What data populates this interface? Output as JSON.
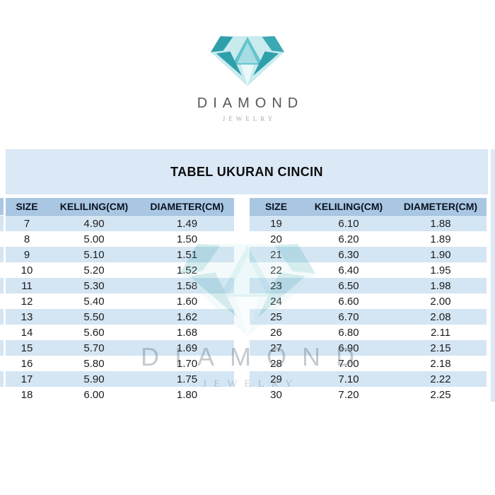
{
  "brand": {
    "name": "DIAMOND",
    "tagline": "JEWELRY"
  },
  "title": "TABEL UKURAN CINCIN",
  "columns": [
    "SIZE",
    "KELILING(CM)",
    "DIAMETER(CM)"
  ],
  "left_table": {
    "rows": [
      [
        "7",
        "4.90",
        "1.49"
      ],
      [
        "8",
        "5.00",
        "1.50"
      ],
      [
        "9",
        "5.10",
        "1.51"
      ],
      [
        "10",
        "5.20",
        "1.52"
      ],
      [
        "11",
        "5.30",
        "1.58"
      ],
      [
        "12",
        "5.40",
        "1.60"
      ],
      [
        "13",
        "5.50",
        "1.62"
      ],
      [
        "14",
        "5.60",
        "1.68"
      ],
      [
        "15",
        "5.70",
        "1.69"
      ],
      [
        "16",
        "5.80",
        "1.70"
      ],
      [
        "17",
        "5.90",
        "1.75"
      ],
      [
        "18",
        "6.00",
        "1.80"
      ]
    ]
  },
  "right_table": {
    "rows": [
      [
        "19",
        "6.10",
        "1.88"
      ],
      [
        "20",
        "6.20",
        "1.89"
      ],
      [
        "21",
        "6.30",
        "1.90"
      ],
      [
        "22",
        "6.40",
        "1.95"
      ],
      [
        "23",
        "6.50",
        "1.98"
      ],
      [
        "24",
        "6.60",
        "2.00"
      ],
      [
        "25",
        "6.70",
        "2.08"
      ],
      [
        "26",
        "6.80",
        "2.11"
      ],
      [
        "27",
        "6.90",
        "2.15"
      ],
      [
        "28",
        "7.00",
        "2.18"
      ],
      [
        "29",
        "7.10",
        "2.22"
      ],
      [
        "30",
        "7.20",
        "2.25"
      ]
    ]
  },
  "watermark": {
    "name": "DIAMOND",
    "tagline": "JEWELRY"
  },
  "colors": {
    "panel": "#dbe9f6",
    "header-bg": "#a9c7e3",
    "stripe": "#d4e5f3",
    "title-text": "#0d0d0d",
    "header-text": "#0a1220",
    "cell-text": "#1c1c1c",
    "brand-text": "#575757",
    "tagline-text": "#a9a9a9",
    "teal-dark": "#2fa0ab",
    "teal-mid": "#63c3cb",
    "teal-light": "#a5dde2",
    "teal-pale": "#c9ebee",
    "teal-strip": "#e9f8f9"
  },
  "chart_data": {
    "type": "table",
    "title": "TABEL UKURAN CINCIN",
    "columns": [
      "SIZE",
      "KELILING(CM)",
      "DIAMETER(CM)"
    ],
    "rows": [
      [
        "7",
        "4.90",
        "1.49"
      ],
      [
        "8",
        "5.00",
        "1.50"
      ],
      [
        "9",
        "5.10",
        "1.51"
      ],
      [
        "10",
        "5.20",
        "1.52"
      ],
      [
        "11",
        "5.30",
        "1.58"
      ],
      [
        "12",
        "5.40",
        "1.60"
      ],
      [
        "13",
        "5.50",
        "1.62"
      ],
      [
        "14",
        "5.60",
        "1.68"
      ],
      [
        "15",
        "5.70",
        "1.69"
      ],
      [
        "16",
        "5.80",
        "1.70"
      ],
      [
        "17",
        "5.90",
        "1.75"
      ],
      [
        "18",
        "6.00",
        "1.80"
      ],
      [
        "19",
        "6.10",
        "1.88"
      ],
      [
        "20",
        "6.20",
        "1.89"
      ],
      [
        "21",
        "6.30",
        "1.90"
      ],
      [
        "22",
        "6.40",
        "1.95"
      ],
      [
        "23",
        "6.50",
        "1.98"
      ],
      [
        "24",
        "6.60",
        "2.00"
      ],
      [
        "25",
        "6.70",
        "2.08"
      ],
      [
        "26",
        "6.80",
        "2.11"
      ],
      [
        "27",
        "6.90",
        "2.15"
      ],
      [
        "28",
        "7.00",
        "2.18"
      ],
      [
        "29",
        "7.10",
        "2.22"
      ],
      [
        "30",
        "7.20",
        "2.25"
      ]
    ],
    "layout": "two side-by-side tables: sizes 7-18 left, 19-30 right"
  }
}
